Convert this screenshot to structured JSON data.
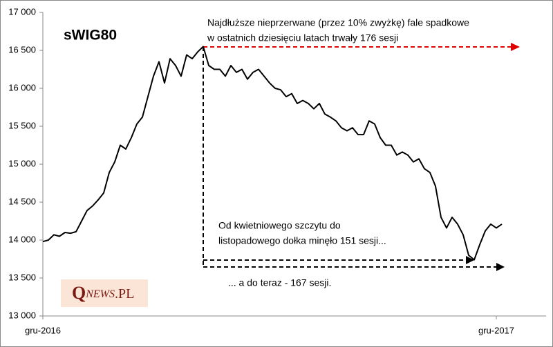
{
  "chart_data": {
    "type": "line",
    "title": "sWIG80",
    "categories": [
      "gru-2016",
      null,
      null,
      null,
      null,
      null,
      null,
      null,
      null,
      null,
      null,
      null,
      null,
      null,
      null,
      null,
      null,
      null,
      null,
      null,
      null,
      null,
      null,
      null,
      null,
      null,
      null,
      null,
      null,
      null,
      null,
      null,
      null,
      null,
      null,
      null,
      null,
      null,
      null,
      null,
      null,
      null,
      null,
      null,
      null,
      null,
      null,
      null,
      null,
      null,
      null,
      null,
      null,
      null,
      null,
      null,
      null,
      null,
      null,
      null,
      null,
      null,
      null,
      null,
      null,
      null,
      null,
      null,
      null,
      null,
      null,
      null,
      null,
      null,
      null,
      null,
      null,
      null,
      null,
      null,
      null,
      null,
      "gru-2017",
      null
    ],
    "values": [
      13980,
      14000,
      14070,
      14050,
      14100,
      14090,
      14110,
      14250,
      14390,
      14450,
      14530,
      14620,
      14890,
      15030,
      15250,
      15200,
      15350,
      15530,
      15620,
      15890,
      16160,
      16350,
      16070,
      16390,
      16300,
      16160,
      16440,
      16390,
      16480,
      16550,
      16300,
      16250,
      16250,
      16160,
      16300,
      16210,
      16250,
      16120,
      16210,
      16250,
      16160,
      16070,
      16000,
      15980,
      15890,
      15930,
      15800,
      15840,
      15800,
      15730,
      15800,
      15660,
      15620,
      15570,
      15480,
      15440,
      15480,
      15390,
      15390,
      15570,
      15530,
      15350,
      15250,
      15250,
      15120,
      15160,
      15120,
      15030,
      15070,
      14940,
      14890,
      14710,
      14300,
      14160,
      14300,
      14210,
      14070,
      13800,
      13740,
      13940,
      14120,
      14210,
      14160,
      14210
    ],
    "color": "#000000",
    "ylim": [
      13000,
      17000
    ],
    "yticks": [
      {
        "value": 13000,
        "label": "13 000"
      },
      {
        "value": 13500,
        "label": "13 500"
      },
      {
        "value": 14000,
        "label": "14 000"
      },
      {
        "value": 14500,
        "label": "14 500"
      },
      {
        "value": 15000,
        "label": "15 000"
      },
      {
        "value": 15500,
        "label": "15 500"
      },
      {
        "value": 16000,
        "label": "16 000"
      },
      {
        "value": 16500,
        "label": "16 500"
      },
      {
        "value": 17000,
        "label": "17 000"
      }
    ],
    "grid": false,
    "annotations": [
      {
        "lines": [
          "Najdłuższe nieprzerwane (przez 10% zwyżkę) fale spadkowe",
          "w ostatnich dziesięciu latach trwały 176 sesji"
        ]
      },
      {
        "lines": [
          "Od kwietniowego szczytu do",
          "listopadowego dołka minęło 151 sesji..."
        ]
      },
      {
        "lines": [
          "... a do teraz - 167 sesji."
        ]
      }
    ],
    "logo": [
      "Q",
      "NEWS",
      ".PL"
    ]
  }
}
